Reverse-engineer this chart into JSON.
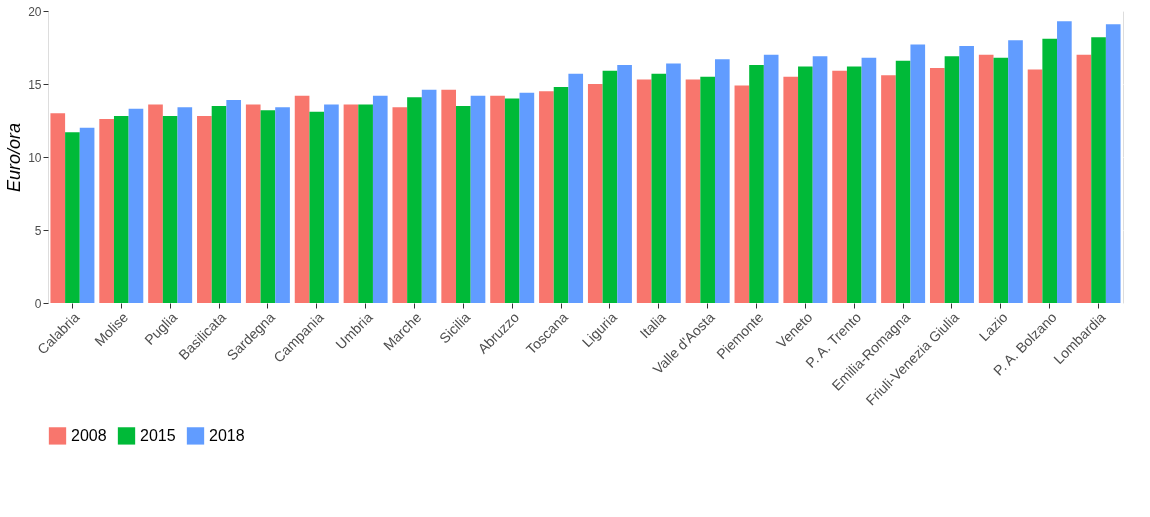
{
  "chart_data": {
    "type": "bar",
    "ylabel": "Euro/ora",
    "categories": [
      "Calabria",
      "Molise",
      "Puglia",
      "Basilicata",
      "Sardegna",
      "Campania",
      "Umbria",
      "Marche",
      "Sicilia",
      "Abruzzo",
      "Toscana",
      "Liguria",
      "Italia",
      "Valle d'Aosta",
      "Piemonte",
      "Veneto",
      "P. A. Trento",
      "Emilia-Romagna",
      "Friuli-Venezia Giulia",
      "Lazio",
      "P. A. Bolzano",
      "Lombardia"
    ],
    "series": [
      {
        "name": "2008",
        "color": "#f8766d",
        "values": [
          13.0,
          12.6,
          13.6,
          12.8,
          13.6,
          14.2,
          13.6,
          13.4,
          14.6,
          14.2,
          14.5,
          15.0,
          15.3,
          15.3,
          14.9,
          15.5,
          15.9,
          15.6,
          16.1,
          17.0,
          16.0,
          17.0
        ]
      },
      {
        "name": "2015",
        "color": "#00ba38",
        "values": [
          11.7,
          12.8,
          12.8,
          13.5,
          13.2,
          13.1,
          13.6,
          14.1,
          13.5,
          14.0,
          14.8,
          15.9,
          15.7,
          15.5,
          16.3,
          16.2,
          16.2,
          16.6,
          16.9,
          16.8,
          18.1,
          18.2
        ]
      },
      {
        "name": "2018",
        "color": "#619cff",
        "values": [
          12.0,
          13.3,
          13.4,
          13.9,
          13.4,
          13.6,
          14.2,
          14.6,
          14.2,
          14.4,
          15.7,
          16.3,
          16.4,
          16.7,
          17.0,
          16.9,
          16.8,
          17.7,
          17.6,
          18.0,
          19.3,
          19.1
        ]
      }
    ],
    "ylim": [
      0,
      20
    ],
    "yticks": [
      0,
      5,
      10,
      15,
      20
    ],
    "grid": true,
    "legend": "bottom"
  }
}
